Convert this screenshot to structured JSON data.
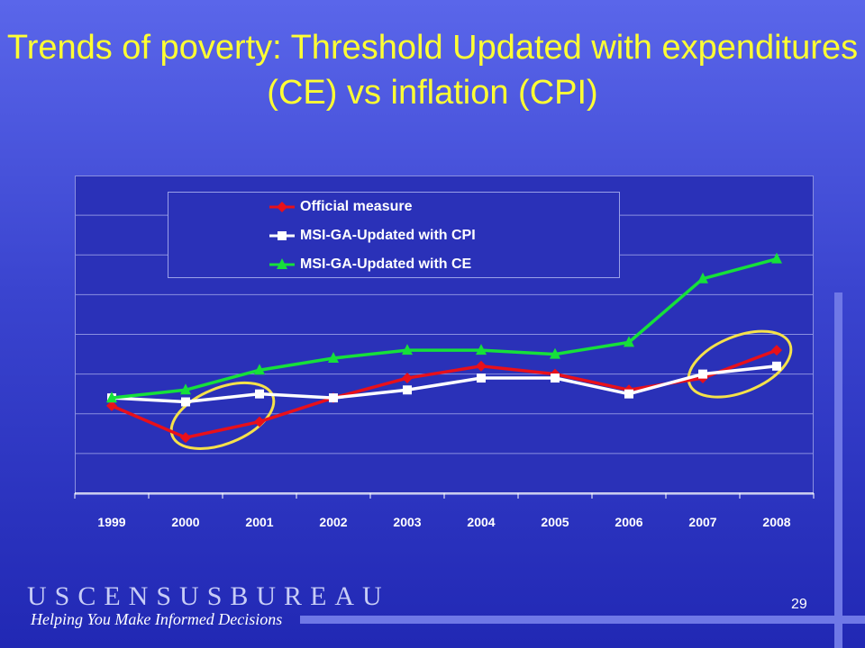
{
  "slide": {
    "title": "Trends of poverty:  Threshold Updated with expenditures (CE) vs inflation (CPI)",
    "page_number": "29",
    "logo_text": "USCENSUSBUREAU",
    "tagline": "Helping You Make Informed Decisions"
  },
  "colors": {
    "official": "#e8101a",
    "cpi": "#ffffff",
    "ce": "#16e03a",
    "highlight_ellipse": "#f5e14a",
    "title": "#ffff33"
  },
  "chart_data": {
    "type": "line",
    "title": "",
    "xlabel": "",
    "ylabel": "",
    "categories": [
      "1999",
      "2000",
      "2001",
      "2002",
      "2003",
      "2004",
      "2005",
      "2006",
      "2007",
      "2008"
    ],
    "y_axis_tick_labels_shown": false,
    "gridlines": true,
    "gridline_count": 8,
    "legend_position": "top-left-inside",
    "series": [
      {
        "name": "Official measure",
        "color": "#e8101a",
        "marker": "diamond",
        "values": [
          2.2,
          1.4,
          1.8,
          2.4,
          2.9,
          3.2,
          3.0,
          2.6,
          2.9,
          3.6
        ]
      },
      {
        "name": "MSI-GA-Updated with CPI",
        "color": "#ffffff",
        "marker": "square",
        "values": [
          2.4,
          2.3,
          2.5,
          2.4,
          2.6,
          2.9,
          2.9,
          2.5,
          3.0,
          3.2
        ]
      },
      {
        "name": "MSI-GA-Updated with CE",
        "color": "#16e03a",
        "marker": "triangle",
        "values": [
          2.4,
          2.6,
          3.1,
          3.4,
          3.6,
          3.6,
          3.5,
          3.8,
          5.4,
          5.9
        ]
      }
    ],
    "highlighted_regions": [
      {
        "from": "2000",
        "to": "2001"
      },
      {
        "from": "2007",
        "to": "2008"
      }
    ]
  }
}
